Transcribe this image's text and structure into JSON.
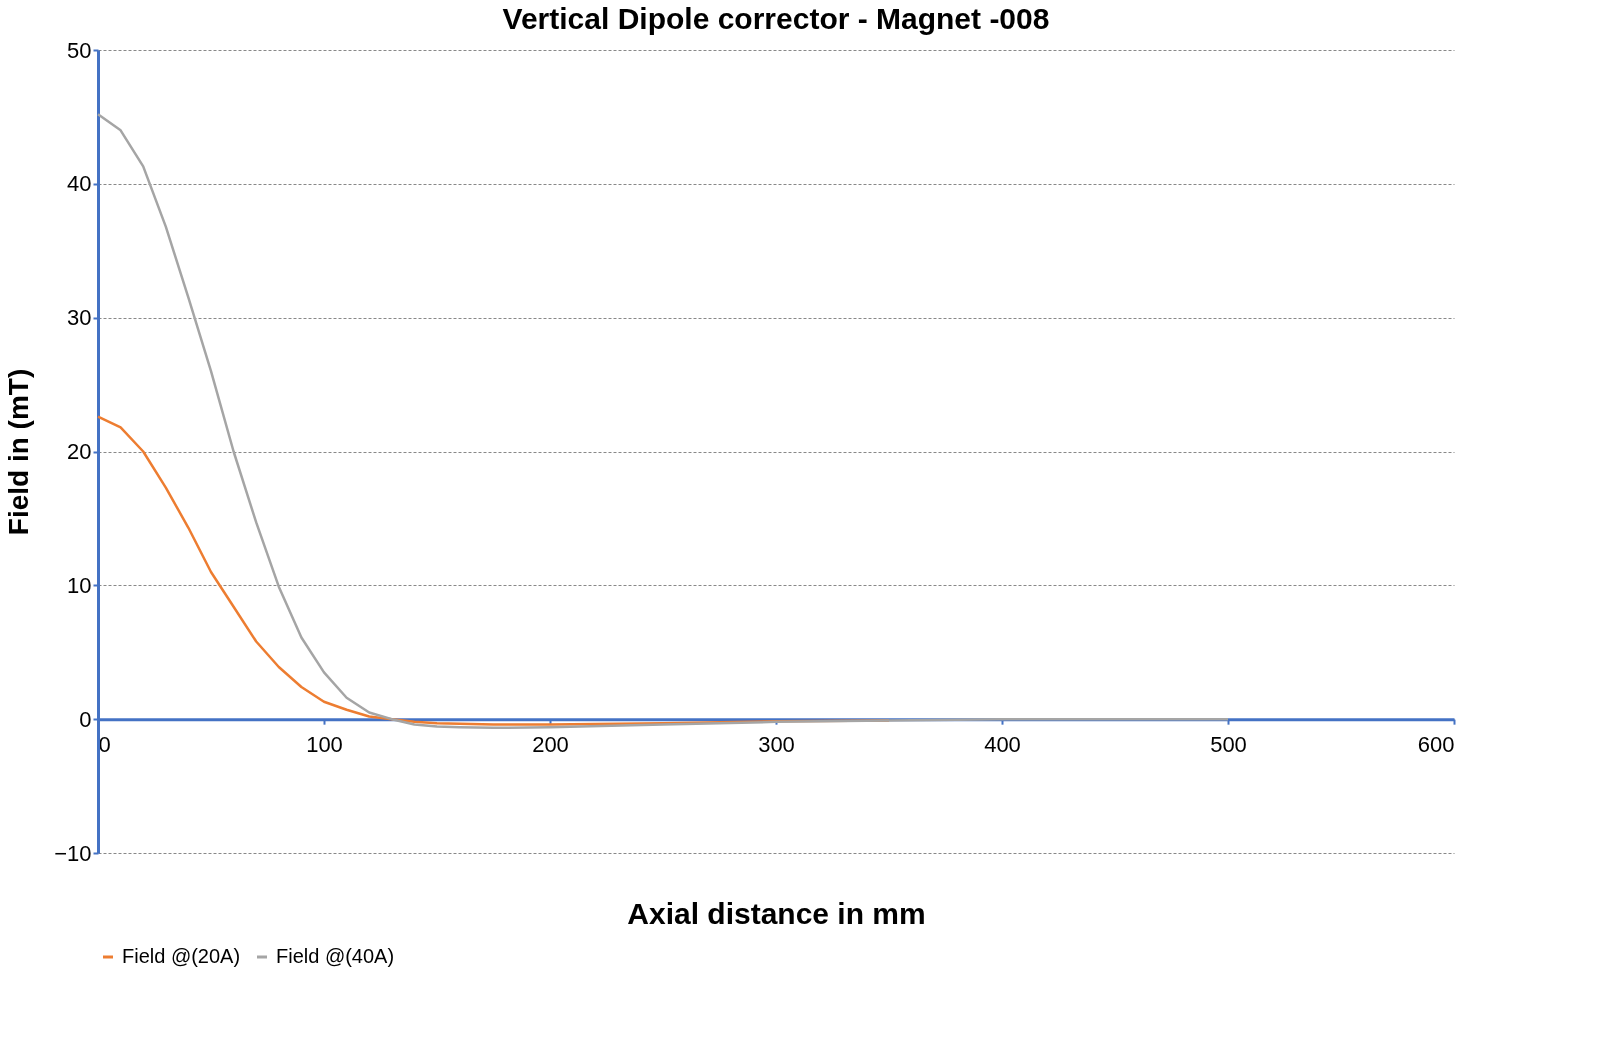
{
  "chart_data": {
    "type": "line",
    "title": "Vertical Dipole corrector - Magnet -008",
    "xlabel": "Axial distance in mm",
    "ylabel": "Field in (mT)",
    "x": [
      0,
      10,
      20,
      30,
      40,
      50,
      60,
      70,
      80,
      90,
      100,
      110,
      120,
      130,
      140,
      150,
      160,
      175,
      180,
      200,
      250,
      300,
      350,
      400,
      450,
      500
    ],
    "series": [
      {
        "name": "Field @(20A)",
        "color": "#ed7d31",
        "x": [
          0,
          10,
          20,
          30,
          40,
          50,
          60,
          70,
          80,
          90,
          100,
          110,
          120,
          130,
          140,
          150,
          160,
          175,
          180,
          200,
          250,
          300,
          350
        ],
        "values": [
          22.6,
          21.8,
          20,
          17.3,
          14.3,
          11,
          8.4,
          5.8,
          3.9,
          2.4,
          1.3,
          0.7,
          0.2,
          0,
          -0.2,
          -0.3,
          -0.35,
          -0.4,
          -0.4,
          -0.4,
          -0.3,
          -0.15,
          -0.1
        ]
      },
      {
        "name": "Field @(40A)",
        "color": "#a5a5a5",
        "values": [
          45.2,
          44,
          41.3,
          36.8,
          31.5,
          26,
          20,
          14.7,
          9.9,
          6.1,
          3.5,
          1.6,
          0.5,
          0,
          -0.4,
          -0.55,
          -0.6,
          -0.65,
          -0.65,
          -0.6,
          -0.4,
          -0.2,
          -0.1,
          0,
          0,
          0
        ]
      }
    ],
    "xlim": [
      0,
      600
    ],
    "xticks": [
      0,
      100,
      200,
      300,
      400,
      500,
      600
    ],
    "ylim": [
      -10,
      50
    ],
    "yticks": [
      -10,
      0,
      10,
      20,
      30,
      40,
      50
    ],
    "grid": "y",
    "legend": "bottom",
    "marker": "none",
    "line_style": "solid"
  }
}
